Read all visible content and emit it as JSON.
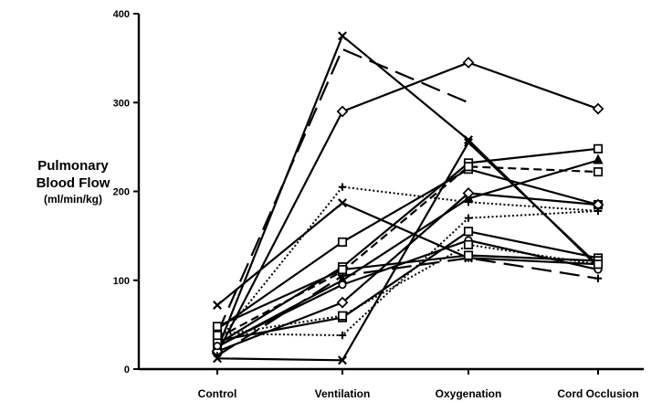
{
  "chart_data": {
    "type": "line",
    "ylabel_lines": [
      "Pulmonary",
      "Blood Flow",
      "(ml/min/kg)"
    ],
    "categories": [
      "Control",
      "Ventilation",
      "Oxygenation",
      "Cord Occlusion"
    ],
    "yticks": [
      "0",
      "100",
      "200",
      "300",
      "400"
    ],
    "ylim": [
      0,
      400
    ],
    "grid": false,
    "legend": "none",
    "series": [
      {
        "values": [
          22,
          375,
          258,
          115
        ],
        "style": "solid",
        "marker": "x"
      },
      {
        "values": [
          18,
          290,
          345,
          293
        ],
        "style": "solid",
        "marker": "diamond"
      },
      {
        "values": [
          40,
          360,
          300,
          null
        ],
        "style": "longdash",
        "marker": "none"
      },
      {
        "values": [
          12,
          10,
          255,
          117
        ],
        "style": "solid",
        "marker": "x"
      },
      {
        "values": [
          72,
          187,
          125,
          118
        ],
        "style": "solid",
        "marker": "x"
      },
      {
        "values": [
          30,
          205,
          188,
          178
        ],
        "style": "dotted",
        "marker": "+"
      },
      {
        "values": [
          45,
          143,
          225,
          185
        ],
        "style": "solid",
        "marker": "square"
      },
      {
        "values": [
          28,
          115,
          232,
          248
        ],
        "style": "solid",
        "marker": "square"
      },
      {
        "values": [
          35,
          110,
          228,
          222
        ],
        "style": "dashed",
        "marker": "square"
      },
      {
        "values": [
          25,
          100,
          192,
          235
        ],
        "style": "solid",
        "marker": "triangle"
      },
      {
        "values": [
          20,
          75,
          198,
          185
        ],
        "style": "solid",
        "marker": "diamond"
      },
      {
        "values": [
          40,
          38,
          170,
          178
        ],
        "style": "dotted",
        "marker": "+"
      },
      {
        "values": [
          32,
          58,
          155,
          125
        ],
        "style": "solid",
        "marker": "square"
      },
      {
        "values": [
          15,
          105,
          125,
          102
        ],
        "style": "longdash",
        "marker": "+"
      },
      {
        "values": [
          48,
          112,
          128,
          122
        ],
        "style": "solid",
        "marker": "square"
      },
      {
        "values": [
          26,
          95,
          145,
          112
        ],
        "style": "solid",
        "marker": "circle"
      },
      {
        "values": [
          38,
          60,
          140,
          118
        ],
        "style": "dotted",
        "marker": "square"
      }
    ]
  }
}
